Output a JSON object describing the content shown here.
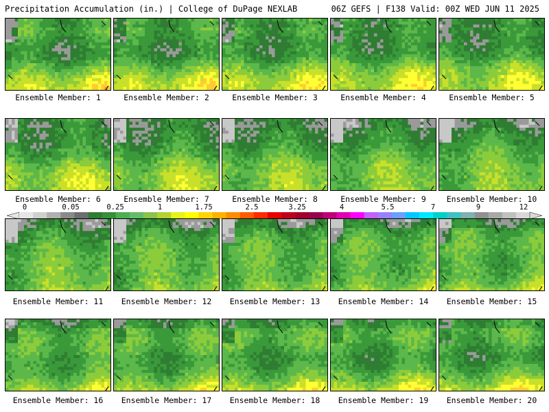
{
  "header": {
    "left": "Precipitation Accumulation (in.) | College of DuPage NEXLAB",
    "right": "06Z GEFS | F138 Valid: 00Z WED JUN 11 2025"
  },
  "members": [
    {
      "label": "Ensemble Member: 1"
    },
    {
      "label": "Ensemble Member: 2"
    },
    {
      "label": "Ensemble Member: 3"
    },
    {
      "label": "Ensemble Member: 4"
    },
    {
      "label": "Ensemble Member: 5"
    },
    {
      "label": "Ensemble Member: 6"
    },
    {
      "label": "Ensemble Member: 7"
    },
    {
      "label": "Ensemble Member: 8"
    },
    {
      "label": "Ensemble Member: 9"
    },
    {
      "label": "Ensemble Member: 10"
    },
    {
      "label": "Ensemble Member: 11"
    },
    {
      "label": "Ensemble Member: 12"
    },
    {
      "label": "Ensemble Member: 13"
    },
    {
      "label": "Ensemble Member: 14"
    },
    {
      "label": "Ensemble Member: 15"
    },
    {
      "label": "Ensemble Member: 16"
    },
    {
      "label": "Ensemble Member: 17"
    },
    {
      "label": "Ensemble Member: 18"
    },
    {
      "label": "Ensemble Member: 19"
    },
    {
      "label": "Ensemble Member: 20"
    }
  ],
  "colorbar": {
    "labels": [
      "0",
      "0.05",
      "0.25",
      "1",
      "1.75",
      "2.5",
      "3.25",
      "4",
      "5.5",
      "7",
      "9",
      "12"
    ],
    "colors": [
      "#e6e6e6",
      "#cfcfcf",
      "#b0b0b0",
      "#8a8a8a",
      "#6e6e6e",
      "#2e7d32",
      "#388e3c",
      "#4caf50",
      "#66bb6a",
      "#8bc34a",
      "#b2d235",
      "#e6f21a",
      "#ffff00",
      "#ffd400",
      "#ffb000",
      "#ff8c00",
      "#ff5a00",
      "#ff2a00",
      "#e60000",
      "#c00018",
      "#a0002a",
      "#9a0050",
      "#c0007a",
      "#e000b0",
      "#ff00ff",
      "#c060ff",
      "#9a80ff",
      "#6aa0ff",
      "#00c8ff",
      "#00e6ff",
      "#00d0c8",
      "#40c0c0",
      "#80b0b0",
      "#909090",
      "#a8a8a8",
      "#c0c0c0",
      "#d8d8d8"
    ]
  }
}
